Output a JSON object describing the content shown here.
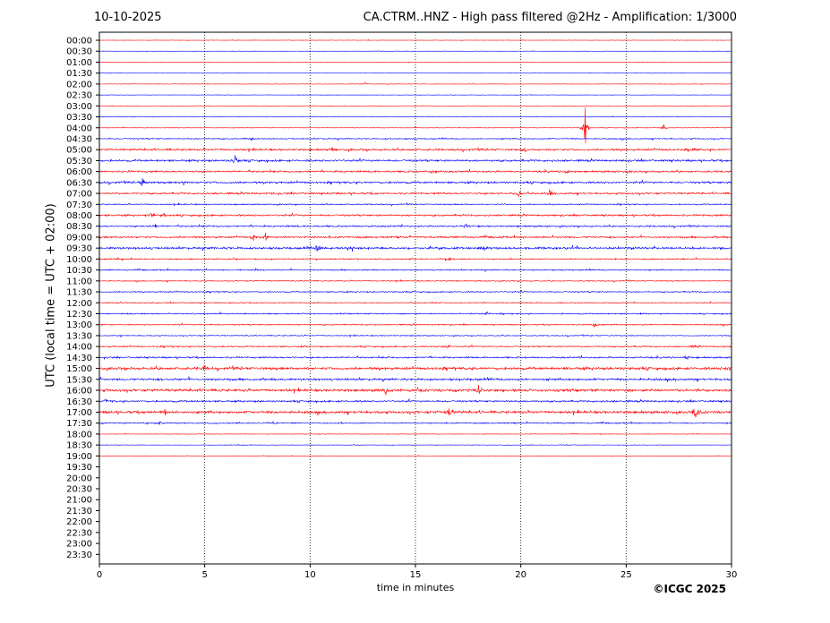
{
  "header": {
    "date": "10-10-2025",
    "title": "CA.CTRM..HNZ - High pass filtered @2Hz - Amplification: 1/3000"
  },
  "footer": {
    "copyright": "©ICGC 2025"
  },
  "chart_data": {
    "type": "line",
    "title": "CA.CTRM..HNZ - High pass filtered @2Hz - Amplification: 1/3000",
    "xlabel": "time in minutes",
    "ylabel": "UTC (local time = UTC + 02:00)",
    "xlim": [
      0,
      30
    ],
    "x_ticks": [
      0,
      5,
      10,
      15,
      20,
      25,
      30
    ],
    "grid_x": [
      5,
      10,
      15,
      20,
      25
    ],
    "grid_style": "dotted vertical",
    "row_labels": [
      "00:00",
      "00:30",
      "01:00",
      "01:30",
      "02:00",
      "02:30",
      "03:00",
      "03:30",
      "04:00",
      "04:30",
      "05:00",
      "05:30",
      "06:00",
      "06:30",
      "07:00",
      "07:30",
      "08:00",
      "08:30",
      "09:00",
      "09:30",
      "10:00",
      "10:30",
      "11:00",
      "11:30",
      "12:00",
      "12:30",
      "13:00",
      "13:30",
      "14:00",
      "14:30",
      "15:00",
      "15:30",
      "16:00",
      "16:30",
      "17:00",
      "17:30",
      "18:00",
      "18:30",
      "19:00",
      "19:30",
      "20:00",
      "20:30",
      "21:00",
      "21:30",
      "22:00",
      "22:30",
      "23:00",
      "23:30"
    ],
    "colors": {
      "even_rows": "#ff0000",
      "odd_rows": "#0000ff"
    },
    "traces_available_until": "19:00",
    "noise_levels": [
      0.2,
      0.2,
      0.2,
      0.2,
      0.25,
      0.2,
      0.25,
      0.3,
      0.3,
      0.6,
      1.0,
      1.0,
      0.9,
      1.0,
      0.9,
      0.6,
      0.9,
      0.8,
      0.9,
      1.1,
      0.6,
      0.6,
      0.5,
      0.6,
      0.5,
      0.6,
      0.6,
      0.5,
      0.7,
      0.8,
      1.3,
      1.1,
      1.3,
      0.9,
      1.3,
      0.6,
      0.3,
      0.25,
      0.25
    ],
    "events": [
      {
        "row": "02:00",
        "x": 12.6,
        "amp": 2
      },
      {
        "row": "04:00",
        "x": 23.05,
        "amp": 28
      },
      {
        "row": "04:00",
        "x": 26.8,
        "amp": 4
      },
      {
        "row": "04:30",
        "x": 7.2,
        "amp": 3
      },
      {
        "row": "05:00",
        "x": 11.1,
        "amp": 3
      },
      {
        "row": "05:00",
        "x": 20.2,
        "amp": 3
      },
      {
        "row": "05:00",
        "x": 28.2,
        "amp": 3
      },
      {
        "row": "05:30",
        "x": 6.45,
        "amp": 8
      },
      {
        "row": "06:00",
        "x": 15.8,
        "amp": 3
      },
      {
        "row": "06:00",
        "x": 22.2,
        "amp": 3
      },
      {
        "row": "06:30",
        "x": 2.05,
        "amp": 6
      },
      {
        "row": "06:30",
        "x": 4.0,
        "amp": 3
      },
      {
        "row": "07:00",
        "x": 19.9,
        "amp": 5
      },
      {
        "row": "07:00",
        "x": 21.4,
        "amp": 4
      },
      {
        "row": "08:00",
        "x": 2.5,
        "amp": 5
      },
      {
        "row": "08:00",
        "x": 3.05,
        "amp": 3
      },
      {
        "row": "08:30",
        "x": 2.65,
        "amp": 3
      },
      {
        "row": "08:30",
        "x": 17.4,
        "amp": 3
      },
      {
        "row": "09:00",
        "x": 7.3,
        "amp": 5
      },
      {
        "row": "09:00",
        "x": 7.9,
        "amp": 4
      },
      {
        "row": "09:30",
        "x": 10.35,
        "amp": 5
      },
      {
        "row": "09:30",
        "x": 18.3,
        "amp": 3
      },
      {
        "row": "10:00",
        "x": 16.6,
        "amp": 2
      },
      {
        "row": "10:30",
        "x": 7.4,
        "amp": 2
      },
      {
        "row": "12:30",
        "x": 18.4,
        "amp": 3
      },
      {
        "row": "13:00",
        "x": 23.5,
        "amp": 3
      },
      {
        "row": "14:00",
        "x": 16.5,
        "amp": 3
      },
      {
        "row": "14:00",
        "x": 28.2,
        "amp": 3
      },
      {
        "row": "14:30",
        "x": 27.9,
        "amp": 3
      },
      {
        "row": "15:00",
        "x": 5.0,
        "amp": 3
      },
      {
        "row": "15:00",
        "x": 29.9,
        "amp": 3
      },
      {
        "row": "16:00",
        "x": 13.6,
        "amp": 6
      },
      {
        "row": "16:00",
        "x": 18.0,
        "amp": 7
      },
      {
        "row": "16:30",
        "x": 0.3,
        "amp": 3
      },
      {
        "row": "17:00",
        "x": 3.1,
        "amp": 4
      },
      {
        "row": "17:00",
        "x": 16.6,
        "amp": 5
      },
      {
        "row": "17:00",
        "x": 28.3,
        "amp": 10
      },
      {
        "row": "17:30",
        "x": 2.9,
        "amp": 3
      },
      {
        "row": "18:00",
        "x": 22.5,
        "amp": 2
      }
    ]
  }
}
